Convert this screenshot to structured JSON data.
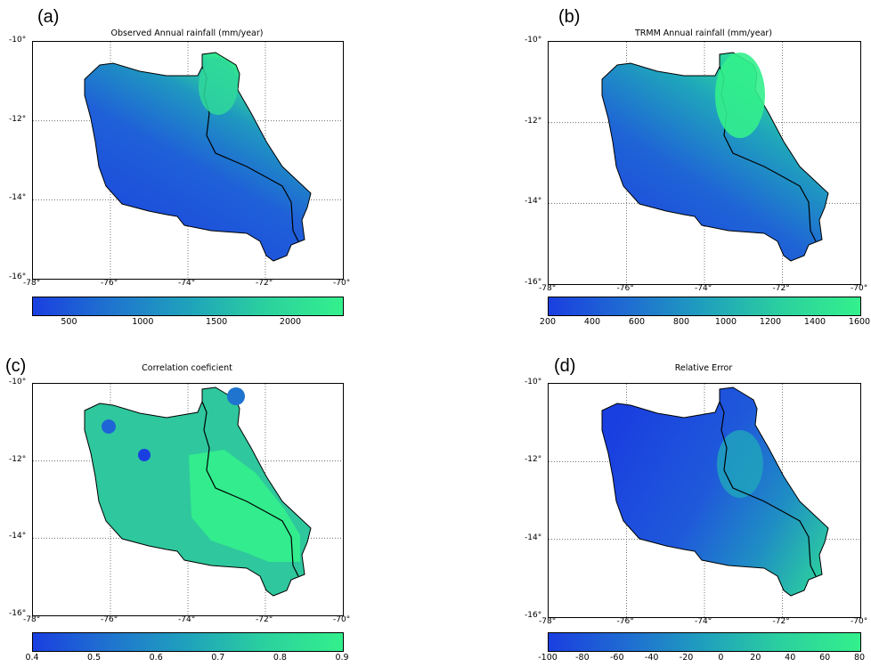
{
  "panels": [
    {
      "letter": "(a)",
      "title": "Observed Annual rainfall (mm/year)",
      "colorbar_ticks": [
        "500",
        "1000",
        "1500",
        "2000"
      ],
      "colorbar_tick_values": [
        500,
        1000,
        1500,
        2000
      ],
      "colorbar_range": [
        250,
        2350
      ]
    },
    {
      "letter": "(b)",
      "title": "TRMM Annual rainfall (mm/year)",
      "colorbar_ticks": [
        "200",
        "400",
        "600",
        "800",
        "1000",
        "1200",
        "1400",
        "1600"
      ],
      "colorbar_tick_values": [
        200,
        400,
        600,
        800,
        1000,
        1200,
        1400,
        1600
      ],
      "colorbar_range": [
        200,
        1600
      ]
    },
    {
      "letter": "(c)",
      "title": "Correlation coeficient",
      "colorbar_ticks": [
        "0.4",
        "0.5",
        "0.6",
        "0.7",
        "0.8",
        "0.9"
      ],
      "colorbar_tick_values": [
        0.4,
        0.5,
        0.6,
        0.7,
        0.8,
        0.9
      ],
      "colorbar_range": [
        0.4,
        0.9
      ]
    },
    {
      "letter": "(d)",
      "title": "Relative Error",
      "colorbar_ticks": [
        "-100",
        "-80",
        "-60",
        "-40",
        "-20",
        "0",
        "20",
        "40",
        "60",
        "80"
      ],
      "colorbar_tick_values": [
        -100,
        -80,
        -60,
        -40,
        -20,
        0,
        20,
        40,
        60,
        80
      ],
      "colorbar_range": [
        -100,
        80
      ]
    }
  ],
  "axes": {
    "x_ticks": [
      "-78°",
      "-76°",
      "-74°",
      "-72°",
      "-70°"
    ],
    "x_values": [
      -78,
      -76,
      -74,
      -72,
      -70
    ],
    "y_ticks": [
      "-10°",
      "-12°",
      "-14°",
      "-16°"
    ],
    "y_values": [
      -10,
      -12,
      -14,
      -16
    ]
  },
  "colors": {
    "low": "#1a3fe0",
    "mid": "#1f86c9",
    "high": "#33f08c",
    "boundary": "#000000",
    "grid": "#555555"
  }
}
